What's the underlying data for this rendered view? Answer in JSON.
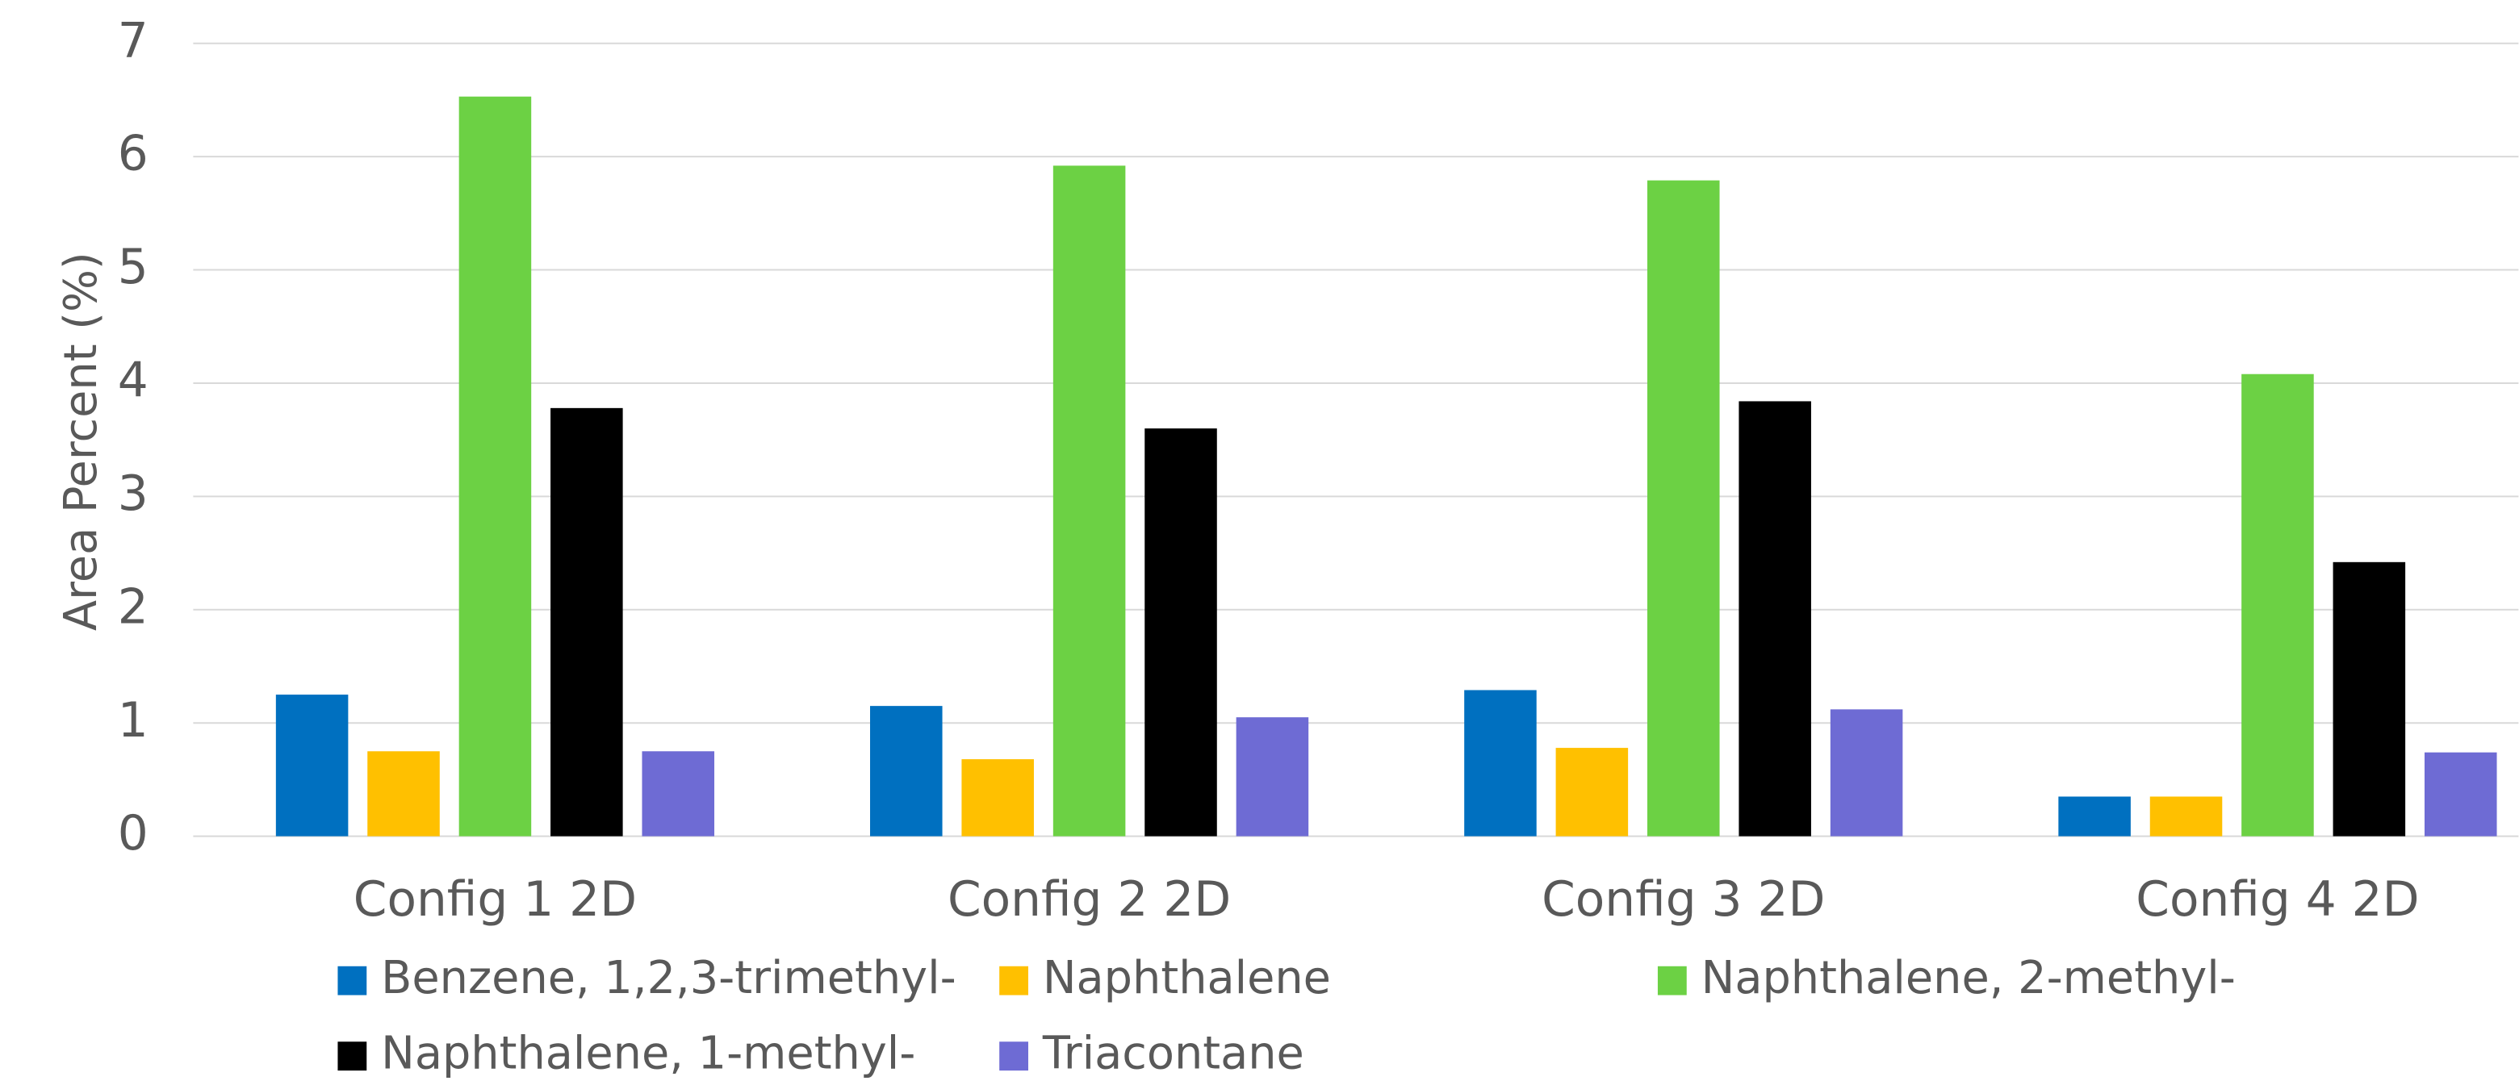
{
  "chart_data": {
    "type": "bar",
    "y_label": "Area Percent (%)",
    "categories": [
      "Config 1 2D",
      "Config 2 2D",
      "Config 3 2D",
      "Config 4 2D"
    ],
    "series": [
      {
        "name": "Benzene, 1,2,3-trimethyl-",
        "color": "#0070c0",
        "values": [
          1.25,
          1.15,
          1.29,
          0.35
        ]
      },
      {
        "name": "Naphthalene",
        "color": "#ffc000",
        "values": [
          0.75,
          0.68,
          0.78,
          0.35
        ]
      },
      {
        "name": "Naphthalene, 2-methyl-",
        "color": "#6cd144",
        "values": [
          6.53,
          5.92,
          5.79,
          4.08
        ]
      },
      {
        "name": "Naphthalene, 1-methyl-",
        "color": "#000000",
        "values": [
          3.78,
          3.6,
          3.84,
          2.42
        ]
      },
      {
        "name": "Triacontane",
        "color": "#6e6bd4",
        "values": [
          0.75,
          1.05,
          1.12,
          0.74
        ]
      }
    ],
    "ylim": [
      0,
      7
    ],
    "yticks": [
      0,
      1,
      2,
      3,
      4,
      5,
      6,
      7
    ],
    "grid": true,
    "legend": "bottom"
  }
}
